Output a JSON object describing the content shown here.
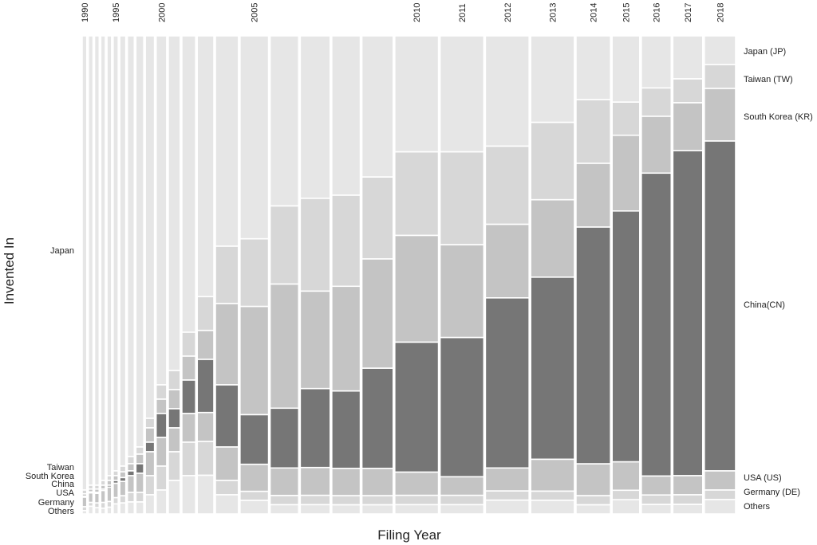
{
  "chart_data": {
    "type": "mosaic",
    "title": "",
    "xlabel": "Filing Year",
    "ylabel": "Invented In",
    "x_tick_labels": [
      "1990",
      "1995",
      "2000",
      "2005",
      "2010",
      "2011",
      "2012",
      "2013",
      "2014",
      "2015",
      "2016",
      "2017",
      "2018"
    ],
    "left_labels": [
      "Japan",
      "Taiwan",
      "South Korea",
      "China",
      "USA",
      "Germany",
      "Others"
    ],
    "legend": [
      "Japan (JP)",
      "Taiwan (TW)",
      "South Korea (KR)",
      "China(CN)",
      "USA (US)",
      "Germany (DE)",
      "Others"
    ],
    "colors": {
      "Japan": "#e6e6e6",
      "Taiwan": "#d7d7d7",
      "South Korea": "#c4c4c4",
      "China": "#767676",
      "USA": "#c4c4c4",
      "Germany": "#d7d7d7",
      "Others": "#e6e6e6"
    },
    "categories_order_top_to_bottom": [
      "Japan",
      "Taiwan",
      "South Korea",
      "China",
      "USA",
      "Germany",
      "Others"
    ],
    "years": [
      1990,
      1991,
      1992,
      1993,
      1994,
      1995,
      1996,
      1997,
      1998,
      1999,
      2000,
      2001,
      2002,
      2003,
      2004,
      2005,
      2006,
      2007,
      2008,
      2009,
      2010,
      2011,
      2012,
      2013,
      2014,
      2015,
      2016,
      2017,
      2018
    ],
    "relative_filings": [
      1,
      1,
      1,
      1,
      1,
      1.1,
      1.3,
      1.5,
      1.7,
      2,
      2.3,
      2.6,
      3,
      3.6,
      5,
      6.2,
      6.2,
      6.5,
      6.2,
      6.8,
      9.5,
      9.5,
      9.5,
      9.5,
      7.5,
      6,
      6.5,
      6.5,
      6.8
    ],
    "shares": {
      "Japan": [
        0.95,
        0.94,
        0.94,
        0.93,
        0.92,
        0.91,
        0.9,
        0.88,
        0.86,
        0.8,
        0.73,
        0.7,
        0.62,
        0.54,
        0.44,
        0.45,
        0.37,
        0.35,
        0.35,
        0.31,
        0.25,
        0.25,
        0.24,
        0.19,
        0.14,
        0.14,
        0.11,
        0.09,
        0.06
      ],
      "Taiwan": [
        0.008,
        0.008,
        0.008,
        0.01,
        0.01,
        0.01,
        0.012,
        0.015,
        0.015,
        0.02,
        0.03,
        0.04,
        0.05,
        0.07,
        0.12,
        0.15,
        0.17,
        0.2,
        0.2,
        0.18,
        0.18,
        0.2,
        0.17,
        0.17,
        0.14,
        0.07,
        0.06,
        0.05,
        0.05
      ],
      "South Korea": [
        0.005,
        0.006,
        0.007,
        0.008,
        0.01,
        0.01,
        0.012,
        0.015,
        0.02,
        0.03,
        0.03,
        0.04,
        0.05,
        0.06,
        0.17,
        0.24,
        0.27,
        0.21,
        0.23,
        0.24,
        0.23,
        0.2,
        0.16,
        0.17,
        0.14,
        0.16,
        0.12,
        0.1,
        0.11
      ],
      "China": [
        0.002,
        0.002,
        0.002,
        0.003,
        0.004,
        0.006,
        0.008,
        0.01,
        0.02,
        0.02,
        0.05,
        0.04,
        0.07,
        0.11,
        0.13,
        0.11,
        0.13,
        0.17,
        0.17,
        0.22,
        0.28,
        0.3,
        0.37,
        0.4,
        0.52,
        0.53,
        0.64,
        0.68,
        0.69
      ],
      "USA": [
        0.02,
        0.02,
        0.02,
        0.025,
        0.03,
        0.03,
        0.03,
        0.035,
        0.04,
        0.05,
        0.06,
        0.05,
        0.06,
        0.06,
        0.07,
        0.06,
        0.06,
        0.06,
        0.06,
        0.06,
        0.05,
        0.04,
        0.05,
        0.07,
        0.07,
        0.06,
        0.04,
        0.04,
        0.04
      ],
      "Germany": [
        0.008,
        0.008,
        0.01,
        0.012,
        0.012,
        0.013,
        0.015,
        0.02,
        0.02,
        0.04,
        0.05,
        0.06,
        0.07,
        0.07,
        0.03,
        0.02,
        0.02,
        0.02,
        0.02,
        0.02,
        0.02,
        0.02,
        0.02,
        0.02,
        0.02,
        0.02,
        0.02,
        0.02,
        0.02
      ],
      "Others": [
        0.007,
        0.016,
        0.013,
        0.012,
        0.014,
        0.021,
        0.023,
        0.025,
        0.025,
        0.04,
        0.05,
        0.07,
        0.08,
        0.08,
        0.04,
        0.03,
        0.02,
        0.02,
        0.02,
        0.02,
        0.02,
        0.02,
        0.03,
        0.03,
        0.02,
        0.03,
        0.02,
        0.02,
        0.03
      ]
    }
  }
}
